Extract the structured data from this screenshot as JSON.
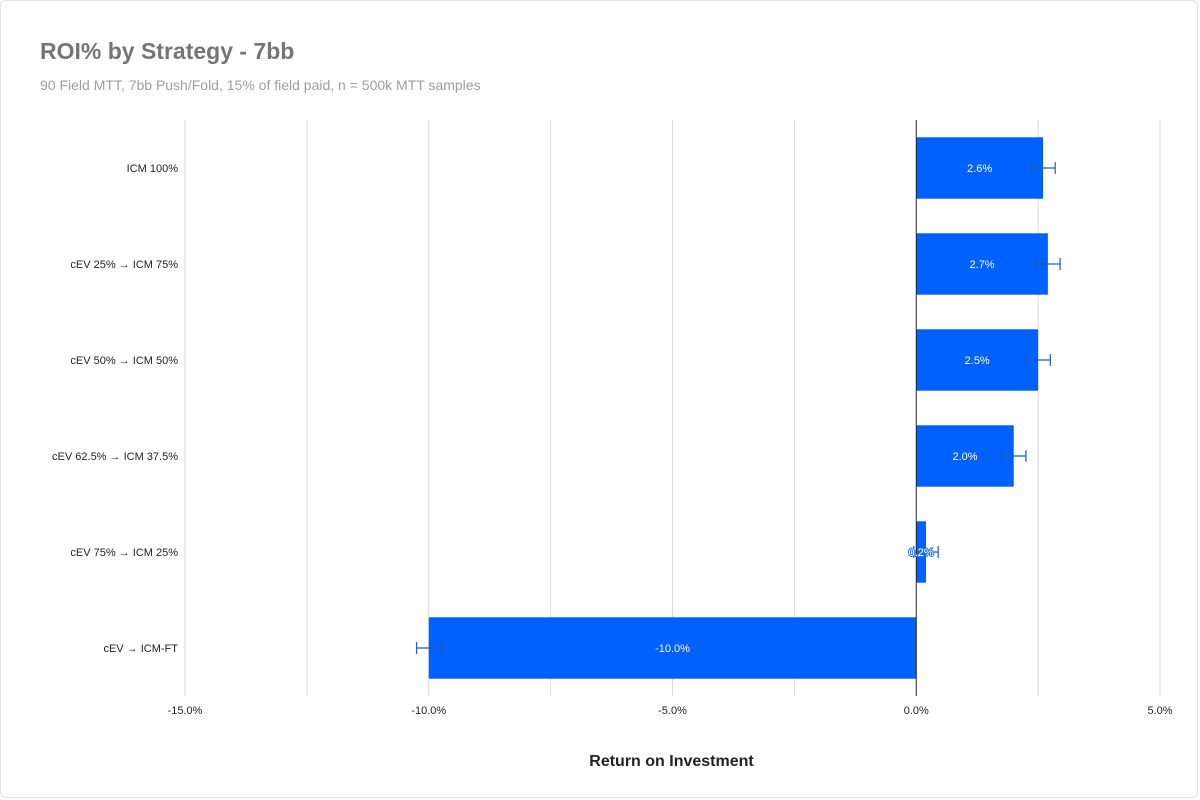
{
  "chart_data": {
    "type": "bar",
    "orientation": "horizontal",
    "title": "ROI% by Strategy - 7bb",
    "subtitle": "90 Field MTT, 7bb Push/Fold, 15% of field paid, n = 500k MTT samples",
    "xlabel": "Return on Investment",
    "ylabel": "",
    "categories": [
      "ICM 100%",
      "cEV 25% → ICM 75%",
      "cEV 50% → ICM 50%",
      "cEV 62.5% → ICM 37.5%",
      "cEV 75% → ICM 25%",
      "cEV → ICM-FT"
    ],
    "values": [
      2.6,
      2.7,
      2.5,
      2.0,
      0.2,
      -10.0
    ],
    "data_labels": [
      "2.6%",
      "2.7%",
      "2.5%",
      "2.0%",
      "0.2%",
      "-10.0%"
    ],
    "error": [
      0.25,
      0.25,
      0.25,
      0.25,
      0.25,
      0.25
    ],
    "xlim": [
      -15,
      5
    ],
    "xticks": [
      -15,
      -10,
      -5,
      0,
      5
    ],
    "xtick_labels": [
      "-15.0%",
      "-10.0%",
      "-5.0%",
      "0.0%",
      "5.0%"
    ],
    "grid": true,
    "bar_color": "#0061ff",
    "error_bar_color": "#1a5fb4"
  }
}
